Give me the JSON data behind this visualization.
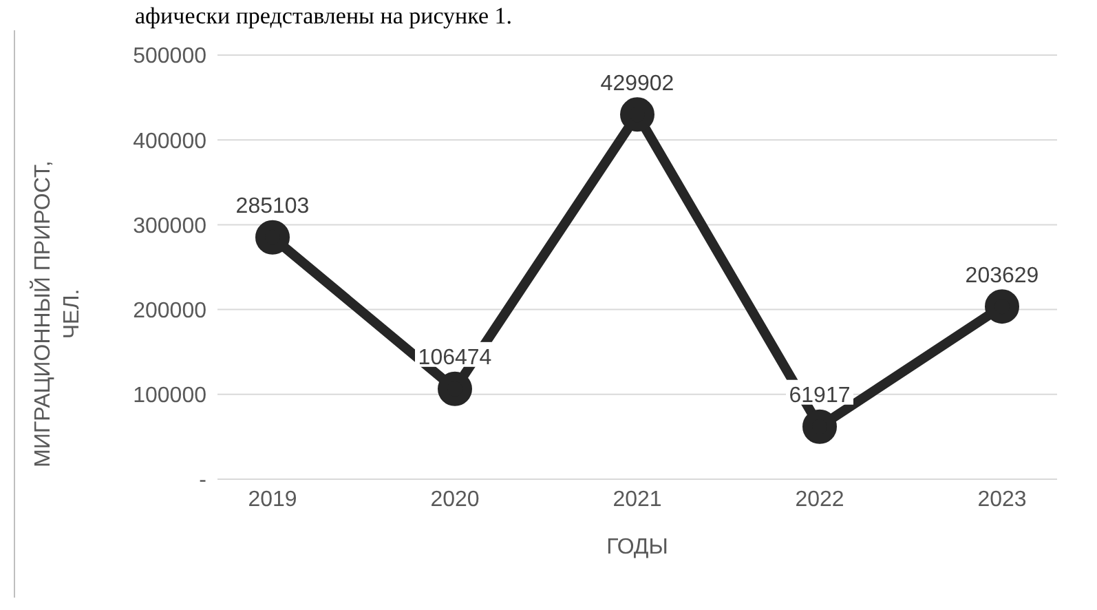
{
  "chart_data": {
    "type": "line",
    "xlabel": "ГОДЫ",
    "ylabel": "МИГРАЦИОННЫЙ ПРИРОСТ, ЧЕЛ.",
    "annotations": [
      "афически представлены на рисунке 1."
    ],
    "categories": [
      "2019",
      "2020",
      "2021",
      "2022",
      "2023"
    ],
    "series": [
      {
        "color": "#262626",
        "values": [
          285103,
          106474,
          429902,
          61917,
          203629
        ]
      }
    ],
    "ylim": [
      0,
      500000
    ],
    "yticks": [
      {
        "value": 0,
        "label": "-"
      },
      100000,
      200000,
      300000,
      400000,
      500000
    ],
    "grid": "y",
    "marker": "circle",
    "line_style": "solid",
    "data_labels": true,
    "legend": false
  }
}
